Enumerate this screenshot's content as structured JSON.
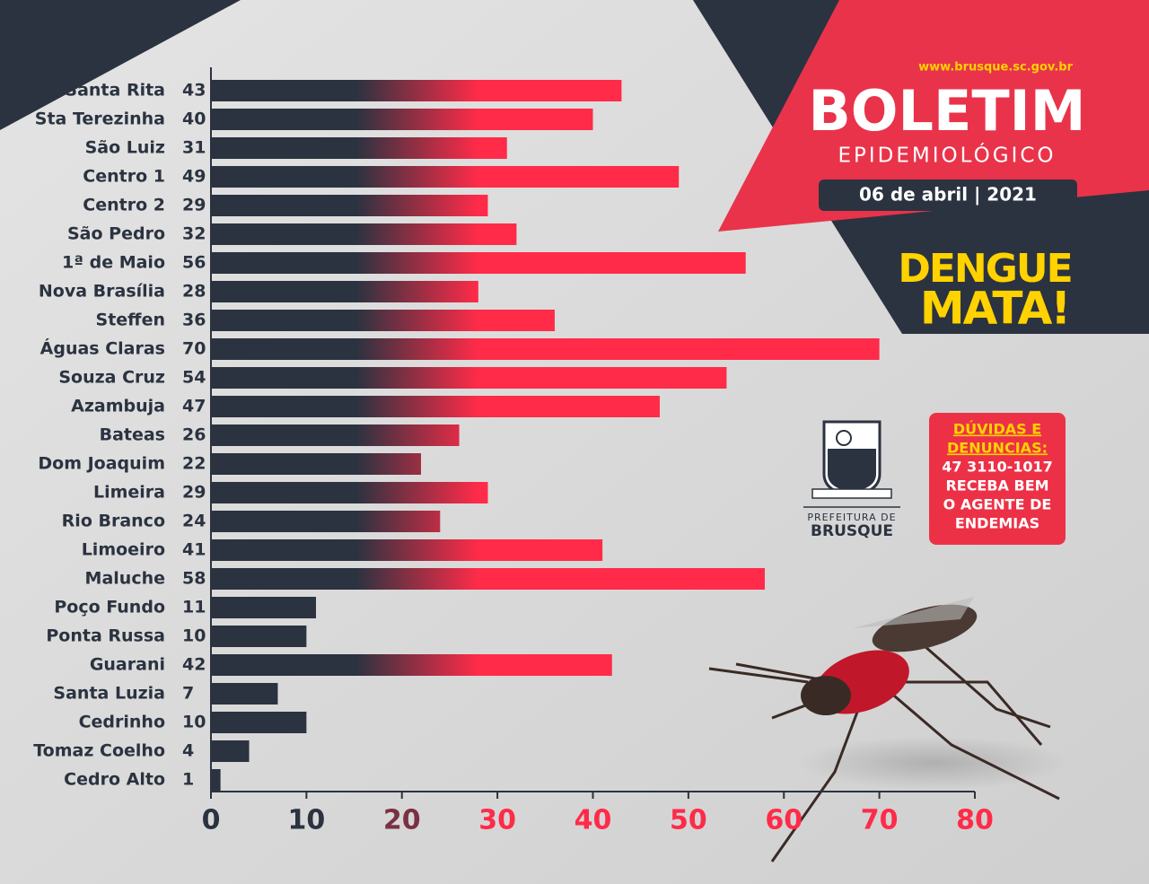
{
  "header": {
    "url": "www.brusque.sc.gov.br",
    "title": "BOLETIM",
    "subtitle": "EPIDEMIOLÓGICO",
    "date": "06 de abril | 2021",
    "slogan_1": "DENGUE",
    "slogan_2": "MATA!"
  },
  "logo": {
    "line_1": "PREFEITURA DE",
    "line_2": "BRUSQUE"
  },
  "contact": {
    "lines": [
      "DÚVIDAS E",
      "DENUNCIAS:",
      "47 3110-1017",
      "RECEBA BEM",
      "O AGENTE DE",
      "ENDEMIAS"
    ]
  },
  "chart_data": {
    "type": "bar",
    "orientation": "horizontal",
    "categories": [
      "Santa Rita",
      "Sta Terezinha",
      "São Luiz",
      "Centro 1",
      "Centro 2",
      "São Pedro",
      "1ª de Maio",
      "Nova Brasília",
      "Steffen",
      "Águas Claras",
      "Souza Cruz",
      "Azambuja",
      "Bateas",
      "Dom Joaquim",
      "Limeira",
      "Rio Branco",
      "Limoeiro",
      "Maluche",
      "Poço Fundo",
      "Ponta Russa",
      "Guarani",
      "Santa Luzia",
      "Cedrinho",
      "Tomaz Coelho",
      "Cedro Alto"
    ],
    "values": [
      43,
      40,
      31,
      49,
      29,
      32,
      56,
      28,
      36,
      70,
      54,
      47,
      26,
      22,
      29,
      24,
      41,
      58,
      11,
      10,
      42,
      7,
      10,
      4,
      1
    ],
    "xlim": [
      0,
      80
    ],
    "xticks": [
      0,
      10,
      20,
      30,
      40,
      50,
      60,
      70,
      80
    ],
    "colors": [
      "#2b3340",
      "#ff2b48"
    ]
  }
}
